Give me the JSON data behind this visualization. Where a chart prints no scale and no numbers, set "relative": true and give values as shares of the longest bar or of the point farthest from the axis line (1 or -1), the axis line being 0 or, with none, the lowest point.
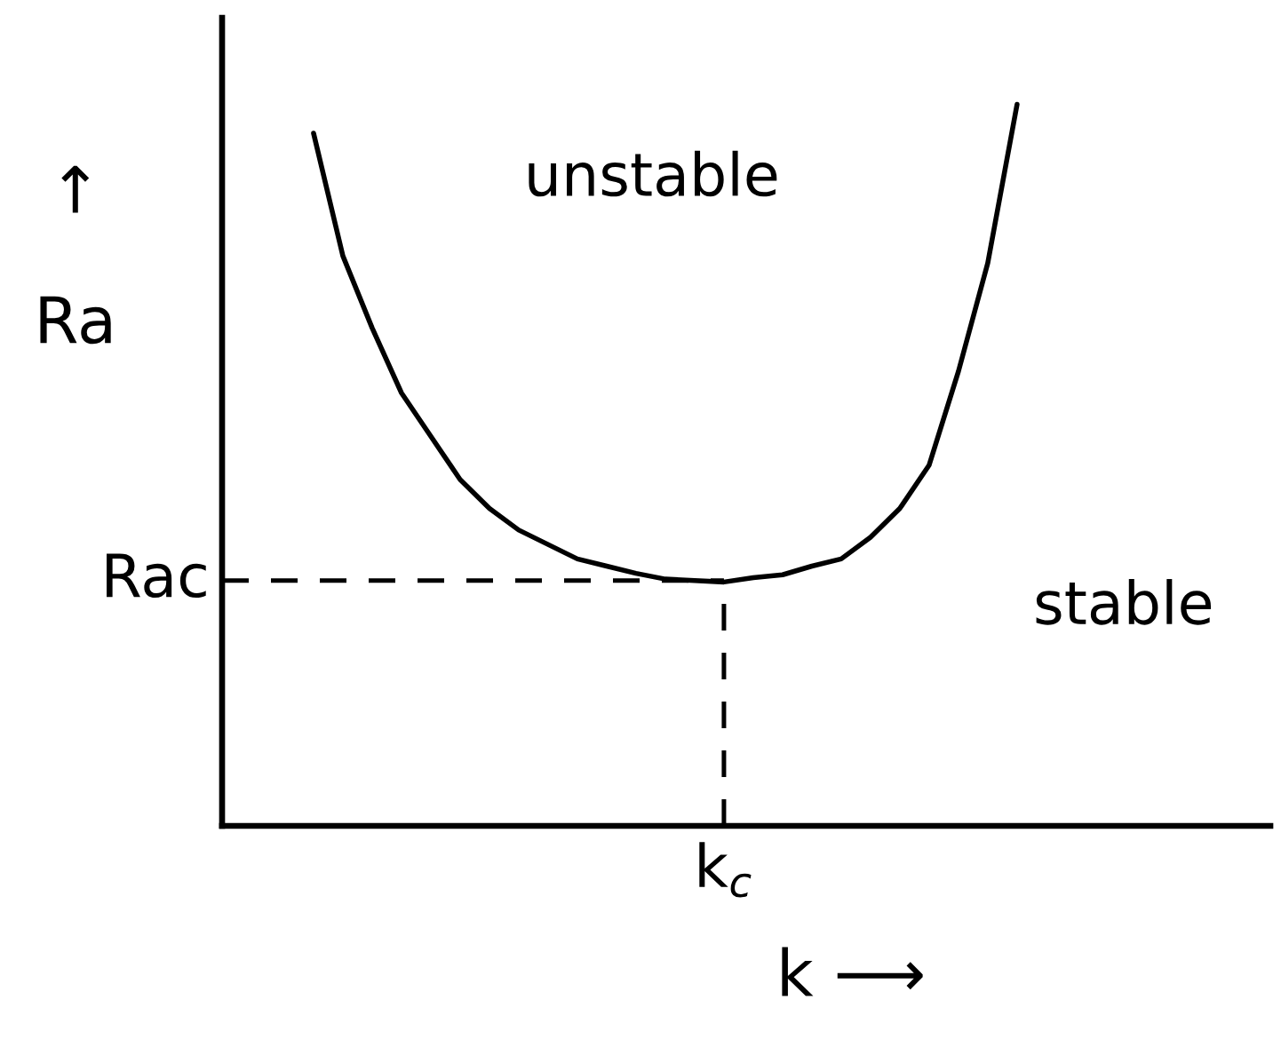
{
  "chart_data": {
    "type": "line",
    "relative": true,
    "xlabel": "k ⟶",
    "ylabel": "↑\nRa",
    "categories": [
      null,
      null,
      null,
      null,
      null,
      null,
      null,
      null,
      null,
      null,
      null,
      null,
      null,
      null,
      null,
      null,
      null,
      null,
      null,
      null,
      null,
      null,
      null,
      null,
      null
    ],
    "values": [
      0.96,
      0.79,
      0.69,
      0.6,
      0.54,
      0.48,
      0.44,
      0.41,
      0.39,
      0.37,
      0.36,
      0.35,
      0.342,
      0.34,
      0.338,
      0.344,
      0.348,
      0.36,
      0.37,
      0.4,
      0.44,
      0.5,
      0.63,
      0.78,
      1.0
    ],
    "color": "#000000",
    "ref_lines": [
      {
        "axis": "y",
        "value": 0.34,
        "label": "Rac",
        "line_style": "dashed",
        "color": "#000000"
      }
    ],
    "annotations": [
      "unstable",
      "stable",
      "k$_{c}$"
    ]
  }
}
